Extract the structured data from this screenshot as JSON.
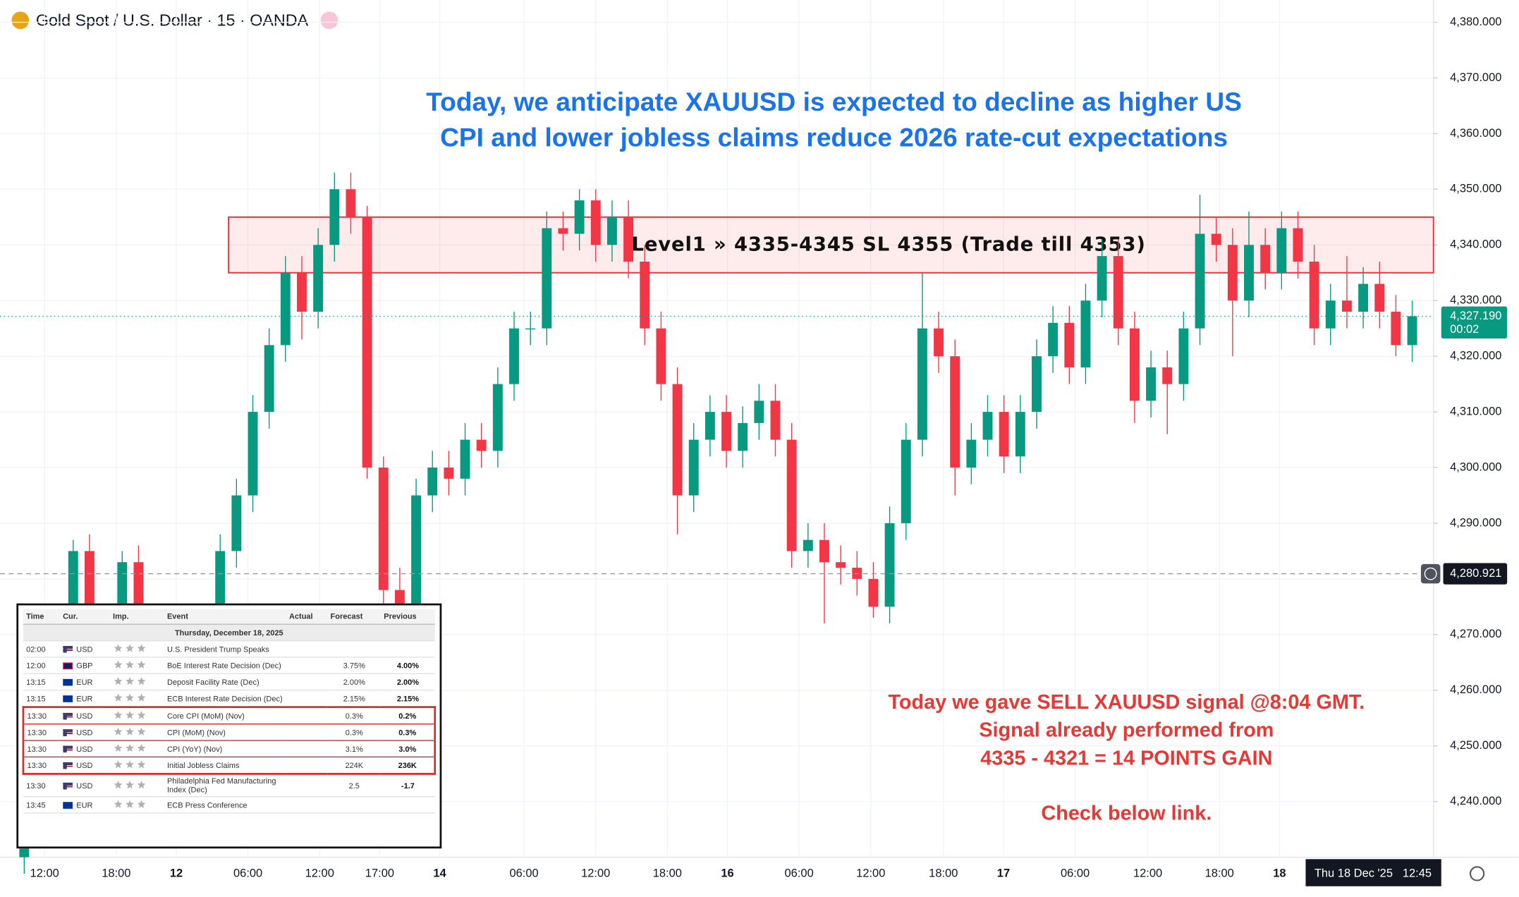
{
  "header": {
    "symbol": "Gold Spot / U.S. Dollar · 15 · OANDA"
  },
  "chart_data": {
    "type": "candlestick",
    "annotation_title": [
      "Today, we anticipate XAUUSD is expected to decline as higher US",
      "CPI and lower jobless claims reduce 2026 rate-cut expectations"
    ],
    "signal_note": [
      "Today we gave SELL XAUUSD signal @8:04 GMT.",
      "Signal already performed from",
      "4335 - 4321 = 14 POINTS GAIN",
      "Check below link."
    ],
    "zone": {
      "low": 4335,
      "high": 4345,
      "label": "Level1 » 4335-4345 SL 4355 (Trade till 4353)",
      "color": "#f23645"
    },
    "up_color": "#089981",
    "down_color": "#f23645",
    "open": [
      4230,
      4235,
      4245,
      4262,
      4285,
      4272,
      4268,
      4283,
      4272,
      4265,
      4262,
      4268,
      4272,
      4285,
      4295,
      4310,
      4322,
      4335,
      4328,
      4340,
      4350,
      4345,
      4300,
      4278,
      4272,
      4295,
      4300,
      4298,
      4305,
      4303,
      4315,
      4325,
      4325,
      4343,
      4342,
      4348,
      4340,
      4345,
      4337,
      4325,
      4315,
      4295,
      4305,
      4310,
      4303,
      4308,
      4312,
      4305,
      4285,
      4287,
      4283,
      4282,
      4280,
      4275,
      4290,
      4305,
      4325,
      4320,
      4300,
      4305,
      4310,
      4302,
      4310,
      4320,
      4326,
      4318,
      4330,
      4338,
      4325,
      4312,
      4318,
      4315,
      4325,
      4342,
      4340,
      4330,
      4340,
      4335,
      4343,
      4337,
      4325,
      4330,
      4328,
      4333,
      4328,
      4322
    ],
    "high": [
      4238,
      4248,
      4265,
      4287,
      4288,
      4275,
      4285,
      4286,
      4275,
      4268,
      4271,
      4275,
      4288,
      4298,
      4313,
      4325,
      4338,
      4338,
      4343,
      4353,
      4353,
      4347,
      4302,
      4282,
      4298,
      4303,
      4303,
      4308,
      4308,
      4318,
      4328,
      4328,
      4346,
      4346,
      4350,
      4350,
      4348,
      4348,
      4340,
      4328,
      4318,
      4308,
      4313,
      4313,
      4311,
      4315,
      4315,
      4308,
      4290,
      4290,
      4286,
      4285,
      4283,
      4293,
      4308,
      4335,
      4328,
      4323,
      4308,
      4313,
      4313,
      4313,
      4323,
      4329,
      4329,
      4333,
      4341,
      4341,
      4328,
      4321,
      4321,
      4328,
      4349,
      4345,
      4343,
      4346,
      4343,
      4346,
      4346,
      4340,
      4333,
      4338,
      4336,
      4337,
      4331,
      4330
    ],
    "low": [
      4227,
      4232,
      4242,
      4259,
      4269,
      4265,
      4265,
      4269,
      4262,
      4259,
      4259,
      4265,
      4269,
      4282,
      4292,
      4307,
      4319,
      4323,
      4325,
      4337,
      4342,
      4298,
      4270,
      4268,
      4270,
      4292,
      4295,
      4295,
      4300,
      4300,
      4312,
      4322,
      4322,
      4339,
      4339,
      4337,
      4337,
      4334,
      4322,
      4312,
      4288,
      4292,
      4302,
      4300,
      4300,
      4305,
      4302,
      4282,
      4282,
      4272,
      4279,
      4277,
      4273,
      4272,
      4287,
      4302,
      4317,
      4295,
      4297,
      4302,
      4299,
      4299,
      4307,
      4317,
      4315,
      4315,
      4327,
      4322,
      4308,
      4309,
      4306,
      4312,
      4322,
      4337,
      4320,
      4327,
      4332,
      4332,
      4334,
      4322,
      4322,
      4325,
      4325,
      4325,
      4320,
      4319
    ],
    "close": [
      4235,
      4245,
      4262,
      4285,
      4272,
      4268,
      4283,
      4272,
      4265,
      4262,
      4268,
      4272,
      4285,
      4295,
      4310,
      4322,
      4335,
      4328,
      4340,
      4350,
      4345,
      4300,
      4278,
      4272,
      4295,
      4300,
      4298,
      4305,
      4303,
      4315,
      4325,
      4325,
      4343,
      4342,
      4348,
      4340,
      4345,
      4337,
      4325,
      4315,
      4295,
      4305,
      4310,
      4303,
      4308,
      4312,
      4305,
      4285,
      4287,
      4283,
      4282,
      4280,
      4275,
      4290,
      4305,
      4325,
      4320,
      4300,
      4305,
      4310,
      4302,
      4310,
      4320,
      4326,
      4318,
      4330,
      4338,
      4325,
      4312,
      4318,
      4315,
      4325,
      4342,
      4340,
      4330,
      4340,
      4335,
      4343,
      4337,
      4325,
      4330,
      4328,
      4333,
      4328,
      4322,
      4327.19
    ],
    "x_tick_labels": [
      "12:00",
      "18:00",
      "12",
      "06:00",
      "12:00",
      "17:00",
      "14",
      "06:00",
      "12:00",
      "18:00",
      "16",
      "06:00",
      "12:00",
      "18:00",
      "17",
      "06:00",
      "12:00",
      "18:00",
      "18"
    ],
    "cursor_date": "Thu 18 Dec '25",
    "cursor_time": "12:45",
    "ylim": [
      4230,
      4384
    ],
    "yticks": [
      {
        "value": 4240,
        "label": "4,240.000"
      },
      {
        "value": 4250,
        "label": "4,250.000"
      },
      {
        "value": 4260,
        "label": "4,260.000"
      },
      {
        "value": 4270,
        "label": "4,270.000"
      },
      {
        "value": 4280,
        "label": "4,280.000"
      },
      {
        "value": 4290,
        "label": "4,290.000"
      },
      {
        "value": 4300,
        "label": "4,300.000"
      },
      {
        "value": 4310,
        "label": "4,310.000"
      },
      {
        "value": 4320,
        "label": "4,320.000"
      },
      {
        "value": 4330,
        "label": "4,330.000"
      },
      {
        "value": 4340,
        "label": "4,340.000"
      },
      {
        "value": 4350,
        "label": "4,350.000"
      },
      {
        "value": 4360,
        "label": "4,360.000"
      },
      {
        "value": 4370,
        "label": "4,370.000"
      },
      {
        "value": 4380,
        "label": "4,380.000"
      }
    ],
    "grid": true,
    "last_price": {
      "value": 4327.19,
      "label": "4,327.190",
      "countdown": "00:02",
      "color": "#089981"
    },
    "crosshair": {
      "value": 4280.921,
      "label": "4,280.921"
    }
  },
  "calendar": {
    "columns": [
      "Time",
      "Cur.",
      "Imp.",
      "Event",
      "Actual",
      "Forecast",
      "Previous"
    ],
    "date": "Thursday, December 18, 2025",
    "rows": [
      {
        "time": "02:00",
        "currency": "USD",
        "event": "U.S. President Trump Speaks"
      },
      {
        "time": "12:00",
        "currency": "GBP",
        "event": "BoE Interest Rate Decision (Dec)",
        "forecast": "3.75%",
        "previous": "4.00%"
      },
      {
        "time": "13:15",
        "currency": "EUR",
        "event": "Deposit Facility Rate (Dec)",
        "forecast": "2.00%",
        "previous": "2.00%"
      },
      {
        "time": "13:15",
        "currency": "EUR",
        "event": "ECB Interest Rate Decision (Dec)",
        "forecast": "2.15%",
        "previous": "2.15%"
      },
      {
        "time": "13:30",
        "currency": "USD",
        "event": "Core CPI (MoM) (Nov)",
        "forecast": "0.3%",
        "previous": "0.2%"
      },
      {
        "time": "13:30",
        "currency": "USD",
        "event": "CPI (MoM) (Nov)",
        "forecast": "0.3%",
        "previous": "0.3%"
      },
      {
        "time": "13:30",
        "currency": "USD",
        "event": "CPI (YoY) (Nov)",
        "forecast": "3.1%",
        "previous": "3.0%"
      },
      {
        "time": "13:30",
        "currency": "USD",
        "event": "Initial Jobless Claims",
        "forecast": "224K",
        "previous": "236K"
      },
      {
        "time": "13:30",
        "currency": "USD",
        "event": "Philadelphia Fed Manufacturing Index (Dec)",
        "forecast": "2.5",
        "previous": "-1.7"
      },
      {
        "time": "13:45",
        "currency": "EUR",
        "event": "ECB Press Conference"
      }
    ]
  }
}
